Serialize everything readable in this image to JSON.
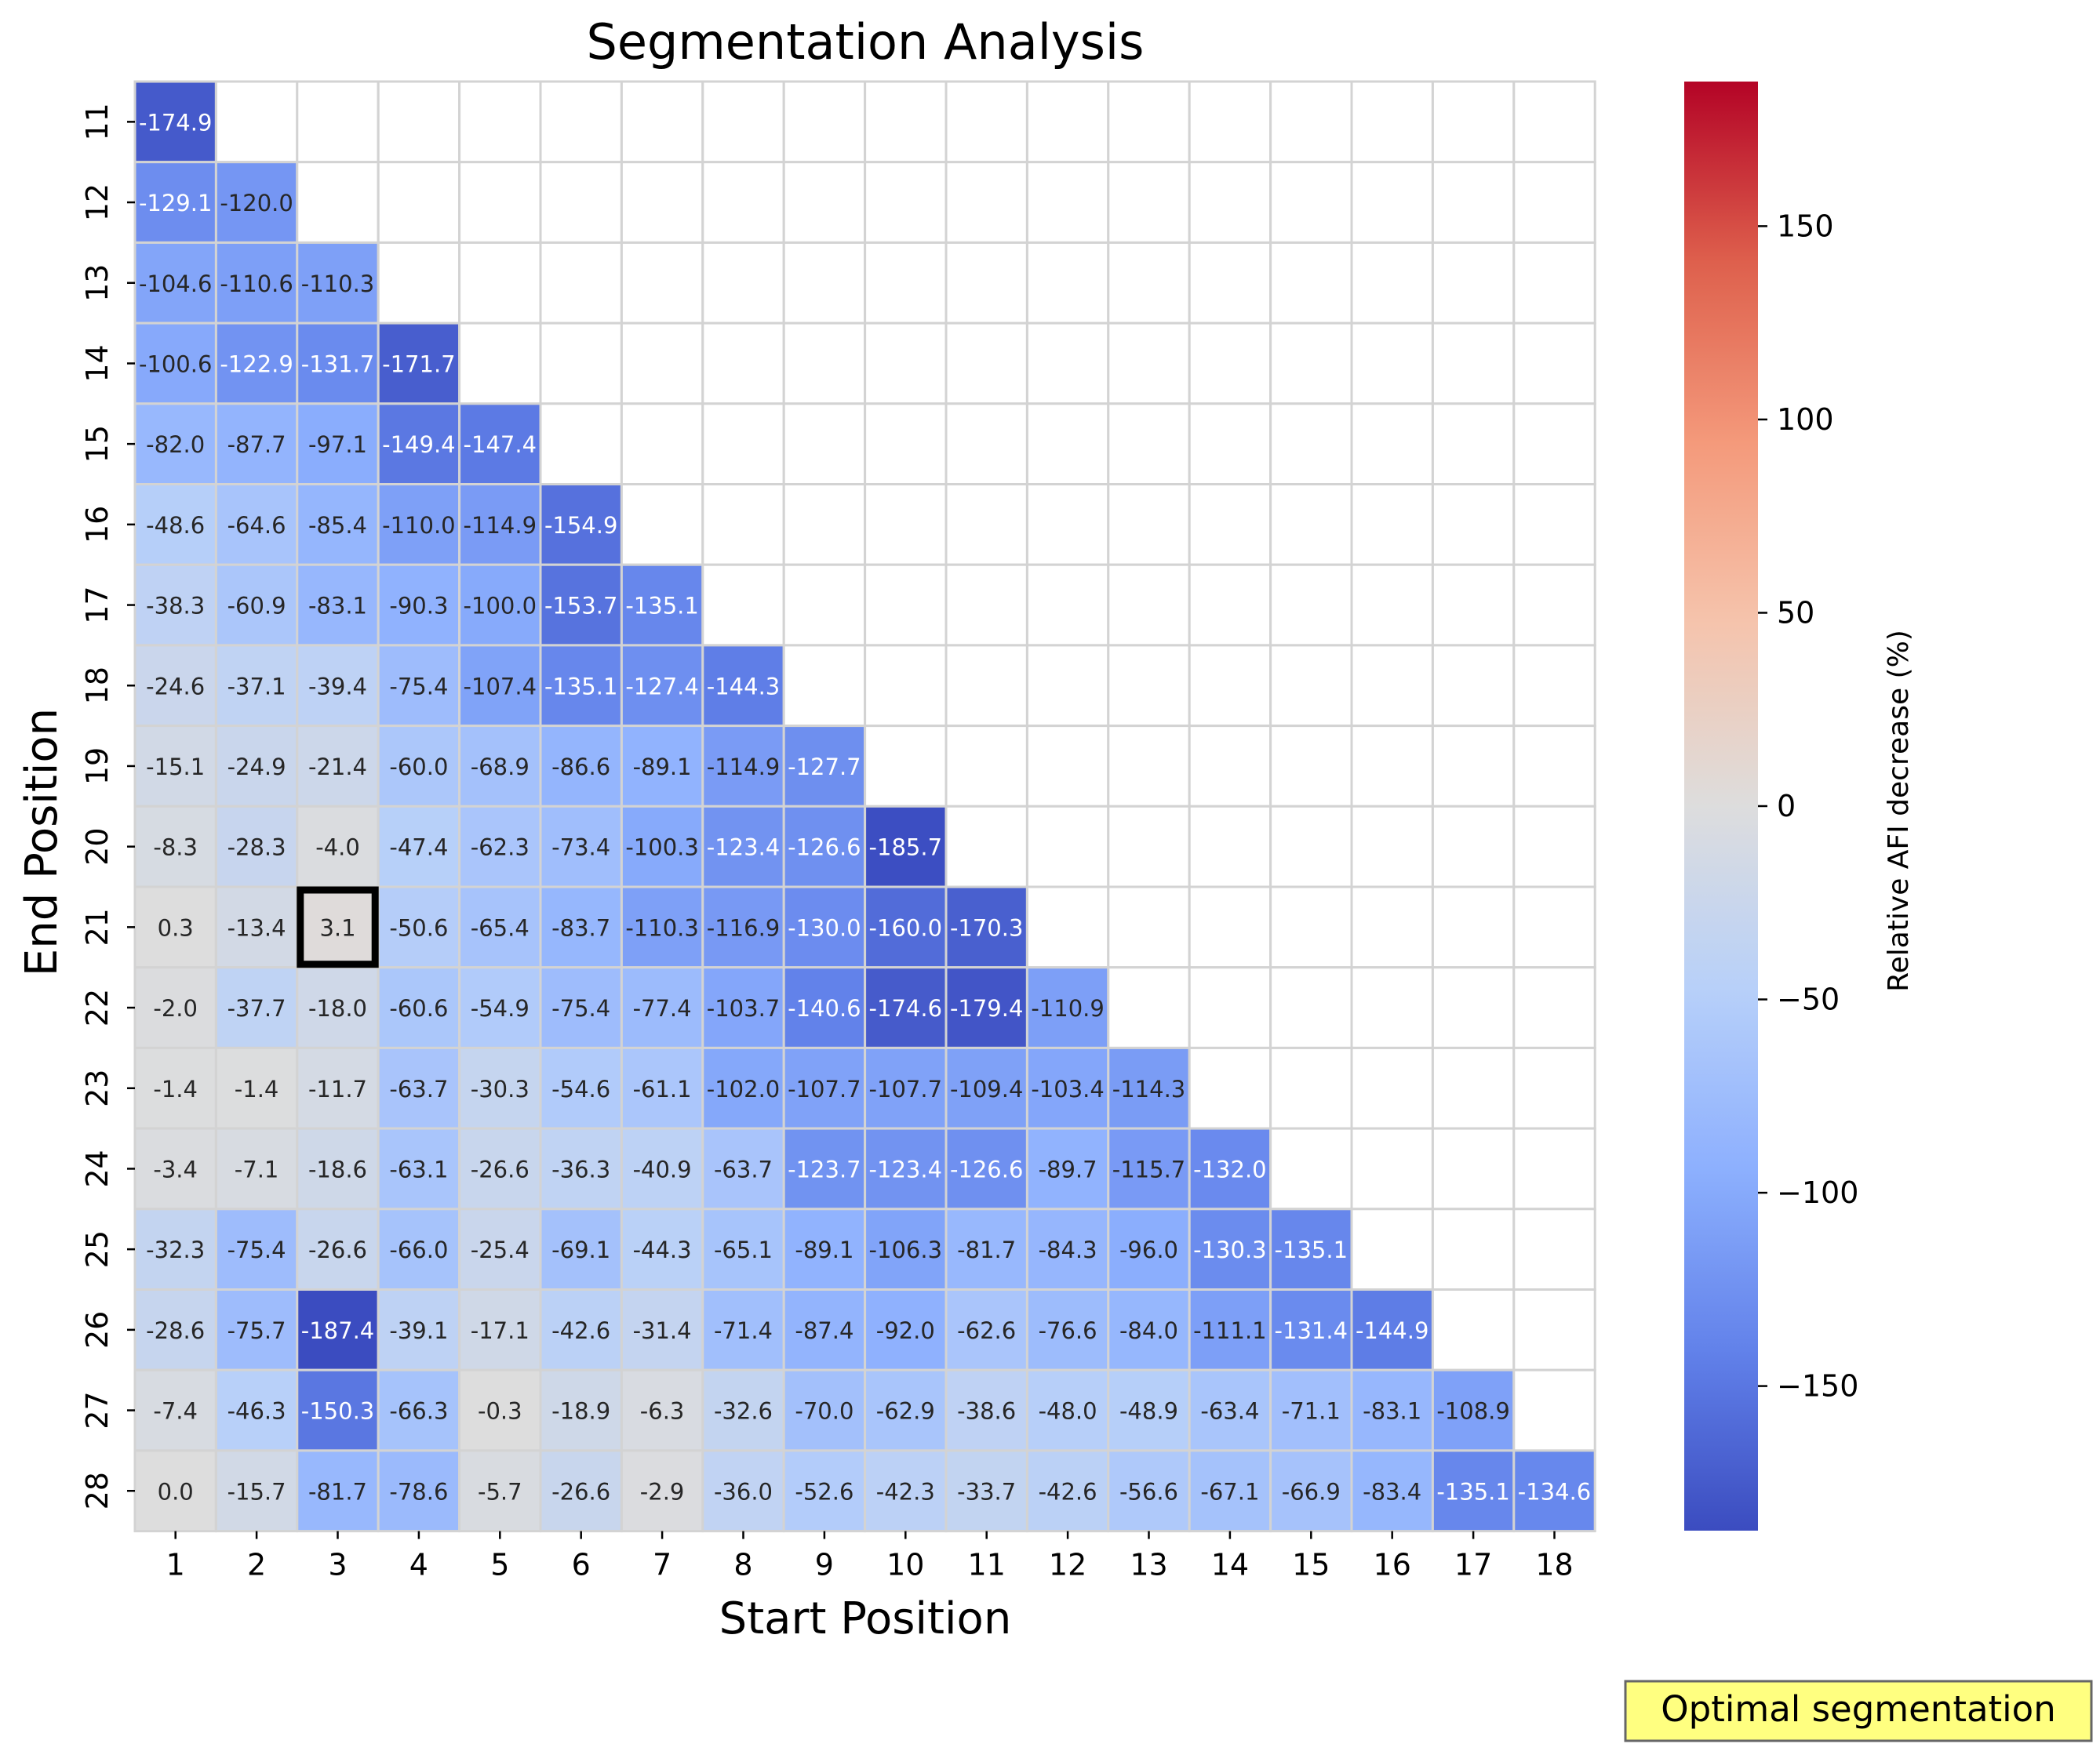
{
  "chart_data": {
    "type": "heatmap",
    "title": "Segmentation Analysis",
    "xlabel": "Start Position",
    "ylabel": "End Position",
    "colorbar_label": "Relative AFI decrease (%)",
    "x_categories": [
      "1",
      "2",
      "3",
      "4",
      "5",
      "6",
      "7",
      "8",
      "9",
      "10",
      "11",
      "12",
      "13",
      "14",
      "15",
      "16",
      "17",
      "18"
    ],
    "y_categories": [
      "11",
      "12",
      "13",
      "14",
      "15",
      "16",
      "17",
      "18",
      "19",
      "20",
      "21",
      "22",
      "23",
      "24",
      "25",
      "26",
      "27",
      "28"
    ],
    "colormap": "coolwarm",
    "vmin": -187.4,
    "vmax": 187.4,
    "colorbar_ticks": [
      "150",
      "100",
      "50",
      "0",
      "−50",
      "−100",
      "−150"
    ],
    "colorbar_tick_values": [
      150,
      100,
      50,
      0,
      -50,
      -100,
      -150
    ],
    "values": [
      [
        -174.9
      ],
      [
        -129.1,
        -120.0
      ],
      [
        -104.6,
        -110.6,
        -110.3
      ],
      [
        -100.6,
        -122.9,
        -131.7,
        -171.7
      ],
      [
        -82.0,
        -87.7,
        -97.1,
        -149.4,
        -147.4
      ],
      [
        -48.6,
        -64.6,
        -85.4,
        -110.0,
        -114.9,
        -154.9
      ],
      [
        -38.3,
        -60.9,
        -83.1,
        -90.3,
        -100.0,
        -153.7,
        -135.1
      ],
      [
        -24.6,
        -37.1,
        -39.4,
        -75.4,
        -107.4,
        -135.1,
        -127.4,
        -144.3
      ],
      [
        -15.1,
        -24.9,
        -21.4,
        -60.0,
        -68.9,
        -86.6,
        -89.1,
        -114.9,
        -127.7
      ],
      [
        -8.3,
        -28.3,
        -4.0,
        -47.4,
        -62.3,
        -73.4,
        -100.3,
        -123.4,
        -126.6,
        -185.7
      ],
      [
        0.3,
        -13.4,
        3.1,
        -50.6,
        -65.4,
        -83.7,
        -110.3,
        -116.9,
        -130.0,
        -160.0,
        -170.3
      ],
      [
        -2.0,
        -37.7,
        -18.0,
        -60.6,
        -54.9,
        -75.4,
        -77.4,
        -103.7,
        -140.6,
        -174.6,
        -179.4,
        -110.9
      ],
      [
        -1.4,
        -1.4,
        -11.7,
        -63.7,
        -30.3,
        -54.6,
        -61.1,
        -102.0,
        -107.7,
        -107.7,
        -109.4,
        -103.4,
        -114.3
      ],
      [
        -3.4,
        -7.1,
        -18.6,
        -63.1,
        -26.6,
        -36.3,
        -40.9,
        -63.7,
        -123.7,
        -123.4,
        -126.6,
        -89.7,
        -115.7,
        -132.0
      ],
      [
        -32.3,
        -75.4,
        -26.6,
        -66.0,
        -25.4,
        -69.1,
        -44.3,
        -65.1,
        -89.1,
        -106.3,
        -81.7,
        -84.3,
        -96.0,
        -130.3,
        -135.1
      ],
      [
        -28.6,
        -75.7,
        -187.4,
        -39.1,
        -17.1,
        -42.6,
        -31.4,
        -71.4,
        -87.4,
        -92.0,
        -62.6,
        -76.6,
        -84.0,
        -111.1,
        -131.4,
        -144.9
      ],
      [
        -7.4,
        -46.3,
        -150.3,
        -66.3,
        -0.3,
        -18.9,
        -6.3,
        -32.6,
        -70.0,
        -62.9,
        -38.6,
        -48.0,
        -48.9,
        -63.4,
        -71.1,
        -83.1,
        -108.9
      ],
      [
        0.0,
        -15.7,
        -81.7,
        -78.6,
        -5.7,
        -26.6,
        -2.9,
        -36.0,
        -52.6,
        -42.3,
        -33.7,
        -42.6,
        -56.6,
        -67.1,
        -66.9,
        -83.4,
        -135.1,
        -134.6
      ]
    ],
    "highlight": {
      "start": "3",
      "end": "21",
      "value": 3.1
    },
    "annotation": "Optimal segmentation",
    "annotation_bg": "#ffff80"
  }
}
